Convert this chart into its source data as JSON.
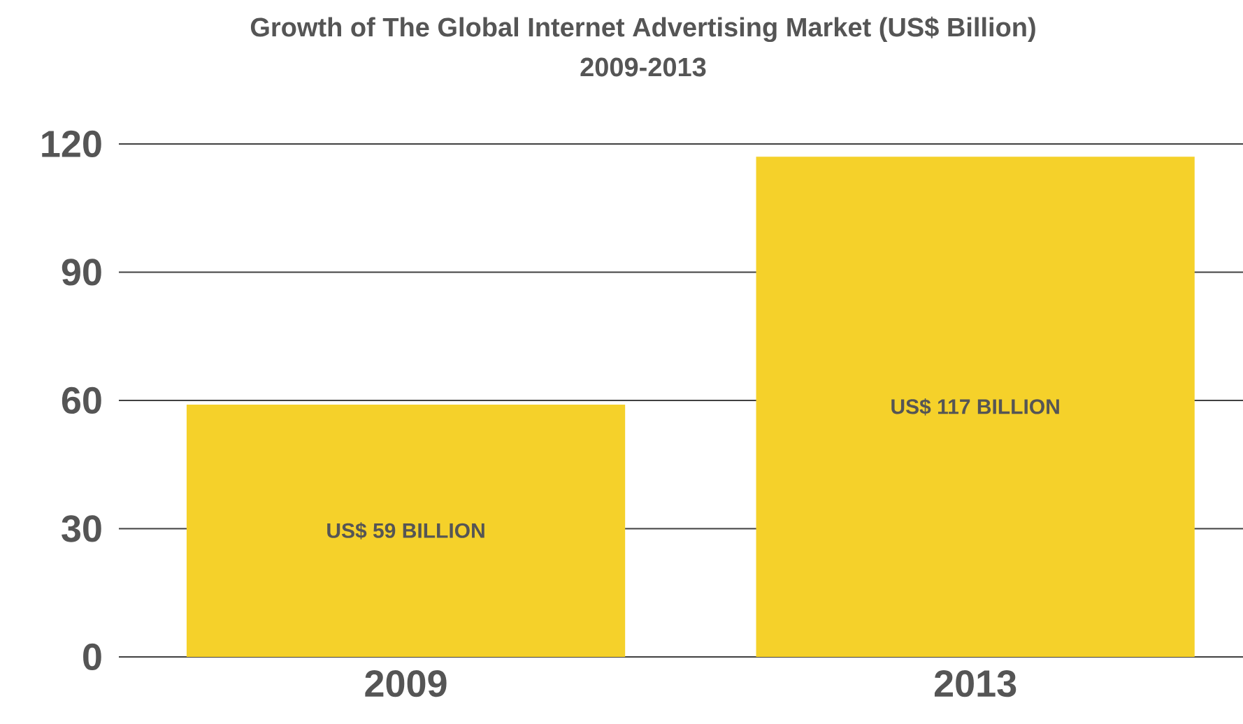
{
  "chart_data": {
    "type": "bar",
    "title": "Growth of The Global Internet Advertising Market (US$ Billion)",
    "subtitle": "2009-2013",
    "categories": [
      "2009",
      "2013"
    ],
    "values": [
      59,
      117
    ],
    "value_labels": [
      "US$ 59 BILLION",
      "US$ 117 BILLION"
    ],
    "color": "#f5d12a",
    "ylim": [
      0,
      120
    ],
    "yticks": [
      0,
      30,
      60,
      90,
      120
    ],
    "grid": "y"
  }
}
